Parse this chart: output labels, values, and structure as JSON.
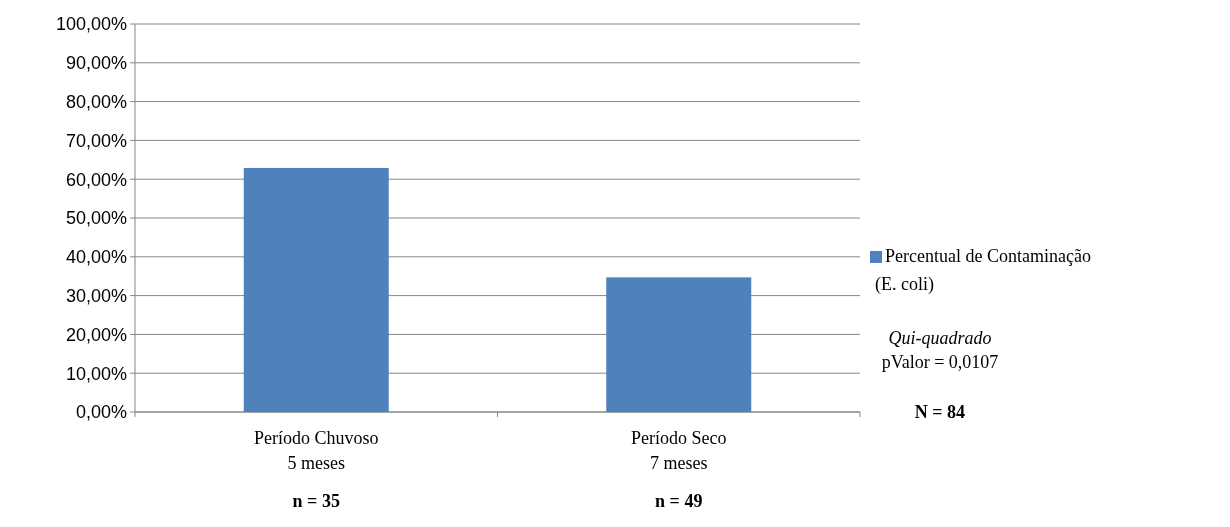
{
  "chart_data": {
    "type": "bar",
    "categories": [
      "Período Chuvoso\n5 meses\nn = 35",
      "Período Seco\n7 meses\nn = 49"
    ],
    "series": [
      {
        "name": "Percentual de Contaminação\n(E. coli)",
        "color": "#4f81bd",
        "values": [
          62.9,
          34.7
        ]
      }
    ],
    "ylim": [
      0,
      100
    ],
    "yticks": [
      {
        "value": 0,
        "label": "0,00%"
      },
      {
        "value": 10,
        "label": "10,00%"
      },
      {
        "value": 20,
        "label": "20,00%"
      },
      {
        "value": 30,
        "label": "30,00%"
      },
      {
        "value": 40,
        "label": "40,00%"
      },
      {
        "value": 50,
        "label": "50,00%"
      },
      {
        "value": 60,
        "label": "60,00%"
      },
      {
        "value": 70,
        "label": "70,00%"
      },
      {
        "value": 80,
        "label": "80,00%"
      },
      {
        "value": 90,
        "label": "90,00%"
      },
      {
        "value": 100,
        "label": "100,00%"
      }
    ],
    "grid": "y",
    "legend": "right",
    "annotations": [
      "Qui-quadrado",
      "pValor = 0,0107",
      "N = 84"
    ]
  }
}
